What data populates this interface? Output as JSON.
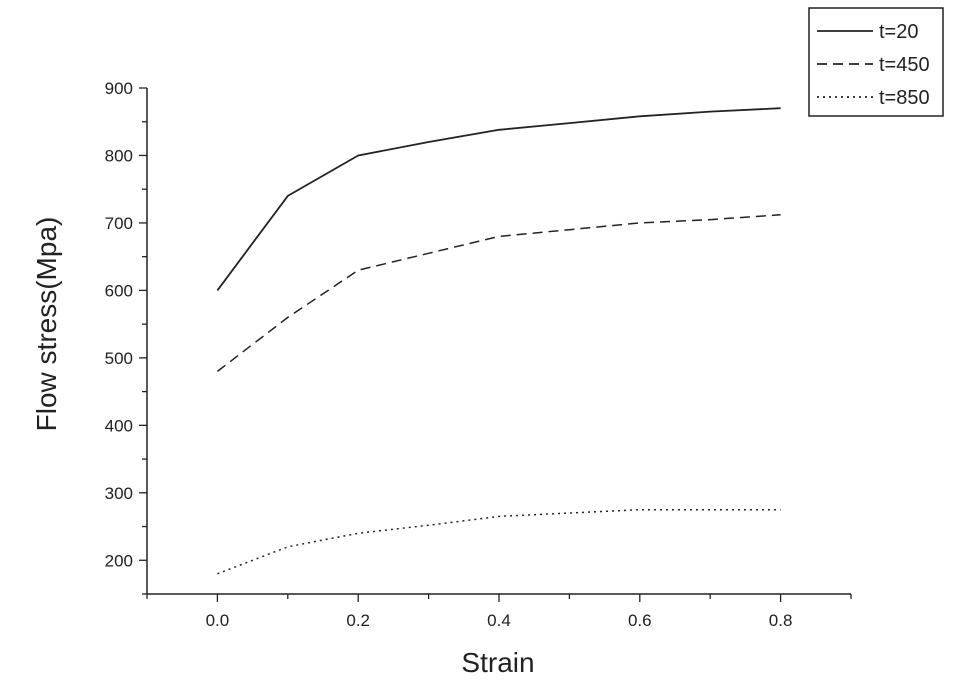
{
  "chart_data": {
    "type": "line",
    "title": "",
    "xlabel": "Strain",
    "ylabel": "Flow stress(Mpa)",
    "xlim": [
      -0.1,
      0.9
    ],
    "ylim": [
      150,
      900
    ],
    "x_ticks": [
      0.0,
      0.2,
      0.4,
      0.6,
      0.8
    ],
    "x_tick_labels": [
      "0.0",
      "0.2",
      "0.4",
      "0.6",
      "0.8"
    ],
    "y_ticks": [
      200,
      300,
      400,
      500,
      600,
      700,
      800,
      900
    ],
    "y_tick_labels": [
      "200",
      "300",
      "400",
      "500",
      "600",
      "700",
      "800",
      "900"
    ],
    "grid": false,
    "legend_position": "top-right",
    "series": [
      {
        "name": "t=20",
        "line_style": "solid",
        "color": "#222222",
        "x": [
          0.0,
          0.1,
          0.2,
          0.3,
          0.4,
          0.5,
          0.6,
          0.7,
          0.8
        ],
        "y": [
          600,
          740,
          800,
          820,
          838,
          848,
          858,
          865,
          870
        ]
      },
      {
        "name": "t=450",
        "line_style": "dashed",
        "color": "#222222",
        "x": [
          0.0,
          0.1,
          0.2,
          0.3,
          0.4,
          0.5,
          0.6,
          0.7,
          0.8
        ],
        "y": [
          480,
          560,
          630,
          655,
          680,
          690,
          700,
          705,
          712
        ]
      },
      {
        "name": "t=850",
        "line_style": "dotted",
        "color": "#222222",
        "x": [
          0.0,
          0.1,
          0.2,
          0.3,
          0.4,
          0.5,
          0.6,
          0.7,
          0.8
        ],
        "y": [
          180,
          220,
          240,
          252,
          265,
          270,
          275,
          275,
          275
        ]
      }
    ]
  }
}
